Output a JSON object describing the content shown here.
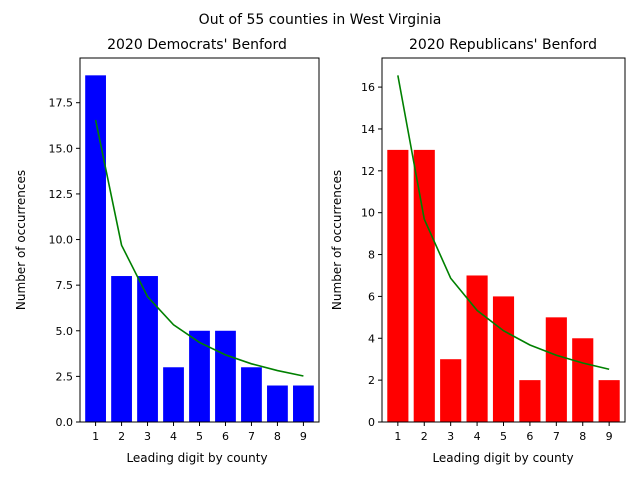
{
  "suptitle": "Out of 55 counties in West Virginia",
  "chart_data": [
    {
      "type": "bar",
      "title": "2020 Democrats' Benford",
      "xlabel": "Leading digit by county",
      "ylabel": "Number of occurrences",
      "categories": [
        "1",
        "2",
        "3",
        "4",
        "5",
        "6",
        "7",
        "8",
        "9"
      ],
      "series": [
        {
          "values": [
            19,
            8,
            8,
            3,
            5,
            5,
            3,
            2,
            2
          ],
          "color": "#0000ff",
          "mark": "bar"
        },
        {
          "values": [
            16.56,
            9.69,
            6.87,
            5.33,
            4.36,
            3.68,
            3.19,
            2.82,
            2.52
          ],
          "color": "#008000",
          "mark": "line"
        }
      ],
      "ylim": [
        0,
        19.95
      ],
      "yticks": [
        "0.0",
        "2.5",
        "5.0",
        "7.5",
        "10.0",
        "12.5",
        "15.0",
        "17.5"
      ],
      "ytick_values": [
        0,
        2.5,
        5,
        7.5,
        10,
        12.5,
        15,
        17.5
      ],
      "grid": false,
      "legend": "none"
    },
    {
      "type": "bar",
      "title": "2020 Republicans' Benford",
      "xlabel": "Leading digit by county",
      "ylabel": "Number of occurrences",
      "categories": [
        "1",
        "2",
        "3",
        "4",
        "5",
        "6",
        "7",
        "8",
        "9"
      ],
      "series": [
        {
          "values": [
            13,
            13,
            3,
            7,
            6,
            2,
            5,
            4,
            2
          ],
          "color": "#ff0000",
          "mark": "bar"
        },
        {
          "values": [
            16.56,
            9.69,
            6.87,
            5.33,
            4.36,
            3.68,
            3.19,
            2.82,
            2.52
          ],
          "color": "#008000",
          "mark": "line"
        }
      ],
      "ylim": [
        0,
        17.39
      ],
      "yticks": [
        "0",
        "2",
        "4",
        "6",
        "8",
        "10",
        "12",
        "14",
        "16"
      ],
      "ytick_values": [
        0,
        2,
        4,
        6,
        8,
        10,
        12,
        14,
        16
      ],
      "grid": false,
      "legend": "none"
    }
  ]
}
